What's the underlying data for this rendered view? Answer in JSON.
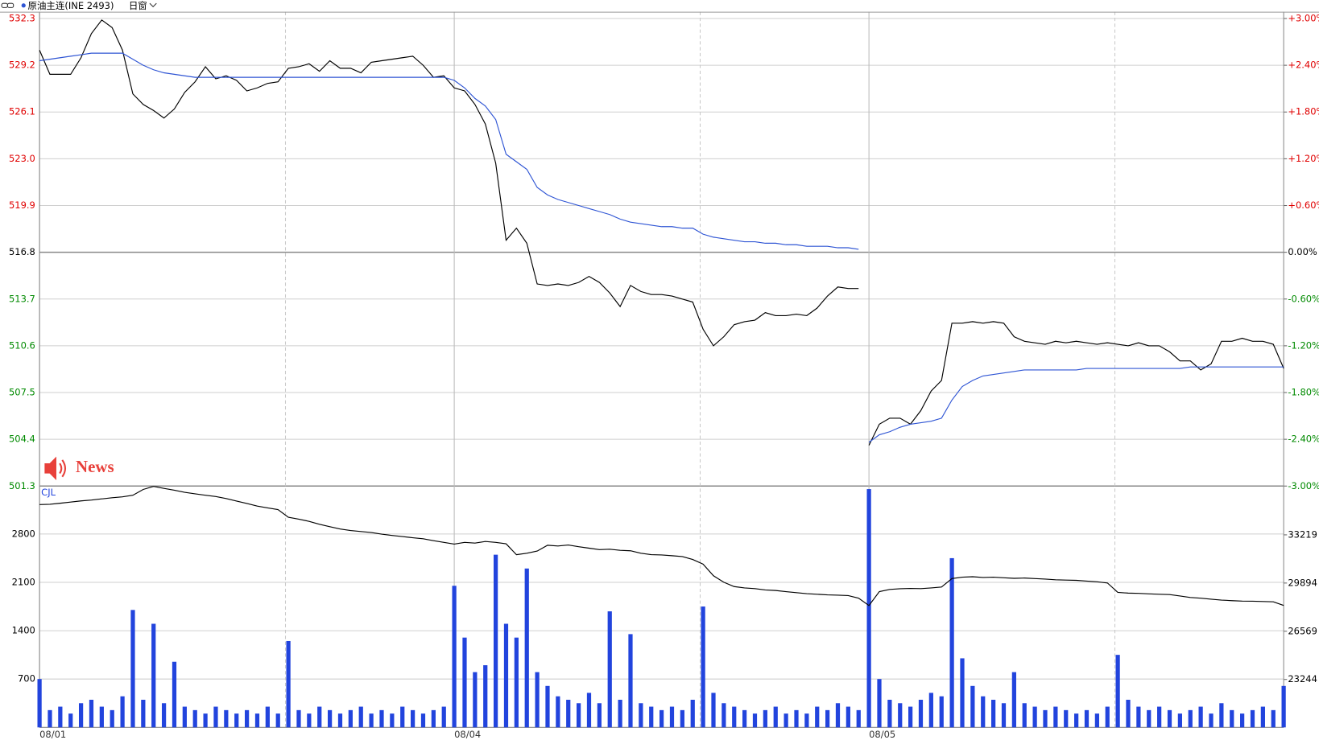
{
  "chart_data": [
    {
      "type": "line",
      "title": "原油主连(INE 2493)",
      "period": "日窗",
      "annotation": "News",
      "x": [
        0,
        0.025,
        0.05,
        0.075,
        0.1,
        0.125,
        0.15,
        0.175,
        0.2,
        0.225,
        0.25,
        0.275,
        0.3,
        0.325,
        0.35,
        0.375,
        0.4,
        0.425,
        0.45,
        0.475,
        0.5,
        0.525,
        0.55,
        0.575,
        0.6,
        0.625,
        0.65,
        0.675,
        0.7,
        0.725,
        0.75,
        0.775,
        0.8,
        0.825,
        0.85,
        0.875,
        0.9,
        0.925,
        0.95,
        0.975,
        1,
        1.025,
        1.05,
        1.075,
        1.1,
        1.125,
        1.15,
        1.175,
        1.2,
        1.225,
        1.25,
        1.275,
        1.3,
        1.325,
        1.35,
        1.375,
        1.4,
        1.425,
        1.45,
        1.475,
        1.5,
        1.525,
        1.55,
        1.575,
        1.6,
        1.625,
        1.65,
        1.675,
        1.7,
        1.725,
        1.75,
        1.775,
        1.8,
        1.825,
        1.85,
        1.875,
        1.9,
        1.925,
        1.95,
        1.975,
        1.995,
        2,
        2.025,
        2.05,
        2.075,
        2.1,
        2.125,
        2.15,
        2.175,
        2.2,
        2.225,
        2.25,
        2.275,
        2.3,
        2.325,
        2.35,
        2.375,
        2.4,
        2.425,
        2.45,
        2.475,
        2.5,
        2.525,
        2.55,
        2.575,
        2.6,
        2.625,
        2.65,
        2.675,
        2.7,
        2.725,
        2.75,
        2.775,
        2.8,
        2.825,
        2.85,
        2.875,
        2.9,
        2.925,
        2.95,
        2.975,
        3
      ],
      "xlim": [
        0,
        3
      ],
      "series": [
        {
          "color": "#000000",
          "values": [
            530.2,
            528.6,
            528.6,
            528.6,
            529.7,
            531.3,
            532.2,
            531.7,
            530.2,
            527.3,
            526.6,
            526.2,
            525.7,
            526.3,
            527.4,
            528.1,
            529.1,
            528.3,
            528.5,
            528.2,
            527.5,
            527.7,
            528.0,
            528.1,
            529.0,
            529.1,
            529.3,
            528.8,
            529.5,
            529.0,
            529.0,
            528.7,
            529.4,
            529.5,
            529.6,
            529.7,
            529.8,
            529.2,
            528.4,
            528.5,
            527.7,
            527.5,
            526.6,
            525.3,
            522.7,
            517.6,
            518.4,
            517.4,
            514.7,
            514.6,
            514.7,
            514.6,
            514.8,
            515.2,
            514.8,
            514.1,
            513.2,
            514.6,
            514.2,
            514.0,
            514.0,
            513.9,
            513.7,
            513.5,
            511.7,
            510.6,
            511.2,
            512.0,
            512.2,
            512.3,
            512.8,
            512.6,
            512.6,
            512.7,
            512.6,
            513.1,
            513.9,
            514.5,
            514.4,
            514.4,
            null,
            504.0,
            505.4,
            505.8,
            505.8,
            505.4,
            506.3,
            507.6,
            508.3,
            512.1,
            512.1,
            512.2,
            512.1,
            512.2,
            512.1,
            511.2,
            510.9,
            510.8,
            510.7,
            510.9,
            510.8,
            510.9,
            510.8,
            510.7,
            510.8,
            510.7,
            510.6,
            510.8,
            510.6,
            510.6,
            510.2,
            509.6,
            509.6,
            509.0,
            509.4,
            510.9,
            510.9,
            511.1,
            510.9,
            510.9,
            510.7,
            509.1
          ]
        },
        {
          "color": "#2f55d4",
          "values": [
            529.5,
            529.6,
            529.7,
            529.8,
            529.9,
            530.0,
            530.0,
            530.0,
            530.0,
            529.6,
            529.2,
            528.9,
            528.7,
            528.6,
            528.5,
            528.4,
            528.4,
            528.4,
            528.4,
            528.4,
            528.4,
            528.4,
            528.4,
            528.4,
            528.4,
            528.4,
            528.4,
            528.4,
            528.4,
            528.4,
            528.4,
            528.4,
            528.4,
            528.4,
            528.4,
            528.4,
            528.4,
            528.4,
            528.4,
            528.4,
            528.2,
            527.7,
            527.0,
            526.5,
            525.6,
            523.3,
            522.8,
            522.3,
            521.1,
            520.6,
            520.3,
            520.1,
            519.9,
            519.7,
            519.5,
            519.3,
            519.0,
            518.8,
            518.7,
            518.6,
            518.5,
            518.5,
            518.4,
            518.4,
            518.0,
            517.8,
            517.7,
            517.6,
            517.5,
            517.5,
            517.4,
            517.4,
            517.3,
            517.3,
            517.2,
            517.2,
            517.2,
            517.1,
            517.1,
            517.0,
            null,
            504.2,
            504.7,
            504.9,
            505.2,
            505.4,
            505.5,
            505.6,
            505.8,
            507.0,
            507.9,
            508.3,
            508.6,
            508.7,
            508.8,
            508.9,
            509.0,
            509.0,
            509.0,
            509.0,
            509.0,
            509.0,
            509.1,
            509.1,
            509.1,
            509.1,
            509.1,
            509.1,
            509.1,
            509.1,
            509.1,
            509.1,
            509.2,
            509.2,
            509.2,
            509.2,
            509.2,
            509.2,
            509.2,
            509.2,
            509.2,
            509.2
          ]
        }
      ],
      "ylim": [
        501.3,
        532.3
      ],
      "yticks": [
        532.3,
        529.2,
        526.1,
        {
          "value": 523,
          "label": "523.0"
        },
        519.9,
        516.8,
        513.7,
        510.6,
        507.5,
        504.4,
        501.3
      ],
      "y2lim": [
        -3,
        3
      ],
      "y2ticks": [
        {
          "value": 3,
          "label": "+3.00%"
        },
        {
          "value": 2.4,
          "label": "+2.40%"
        },
        {
          "value": 1.8,
          "label": "+1.80%"
        },
        {
          "value": 1.2,
          "label": "+1.20%"
        },
        {
          "value": 0.6,
          "label": "+0.60%"
        },
        {
          "value": 0,
          "label": "0.00%"
        },
        {
          "value": -0.6,
          "label": "-0.60%"
        },
        {
          "value": -1.2,
          "label": "-1.20%"
        },
        {
          "value": -1.8,
          "label": "-1.80%"
        },
        {
          "value": -2.4,
          "label": "-2.40%"
        },
        {
          "value": -3,
          "label": "-3.00%"
        }
      ],
      "grid": true
    },
    {
      "type": "bar",
      "x": [
        0,
        0.025,
        0.05,
        0.075,
        0.1,
        0.125,
        0.15,
        0.175,
        0.2,
        0.225,
        0.25,
        0.275,
        0.3,
        0.325,
        0.35,
        0.375,
        0.4,
        0.425,
        0.45,
        0.475,
        0.5,
        0.525,
        0.55,
        0.575,
        0.6,
        0.625,
        0.65,
        0.675,
        0.7,
        0.725,
        0.75,
        0.775,
        0.8,
        0.825,
        0.85,
        0.875,
        0.9,
        0.925,
        0.95,
        0.975,
        1,
        1.025,
        1.05,
        1.075,
        1.1,
        1.125,
        1.15,
        1.175,
        1.2,
        1.225,
        1.25,
        1.275,
        1.3,
        1.325,
        1.35,
        1.375,
        1.4,
        1.425,
        1.45,
        1.475,
        1.5,
        1.525,
        1.55,
        1.575,
        1.6,
        1.625,
        1.65,
        1.675,
        1.7,
        1.725,
        1.75,
        1.775,
        1.8,
        1.825,
        1.85,
        1.875,
        1.9,
        1.925,
        1.95,
        1.975,
        2,
        2.025,
        2.05,
        2.075,
        2.1,
        2.125,
        2.15,
        2.175,
        2.2,
        2.225,
        2.25,
        2.275,
        2.3,
        2.325,
        2.35,
        2.375,
        2.4,
        2.425,
        2.45,
        2.475,
        2.5,
        2.525,
        2.55,
        2.575,
        2.6,
        2.625,
        2.65,
        2.675,
        2.7,
        2.725,
        2.75,
        2.775,
        2.8,
        2.825,
        2.85,
        2.875,
        2.9,
        2.925,
        2.95,
        2.975,
        3
      ],
      "xlim": [
        0,
        3
      ],
      "xticks": [
        {
          "value": 0,
          "label": "08/01"
        },
        {
          "value": 0.593,
          "label": null
        },
        {
          "value": 1,
          "label": "08/04"
        },
        {
          "value": 1.593,
          "label": null
        },
        {
          "value": 2,
          "label": "08/05"
        },
        {
          "value": 2.593,
          "label": null
        }
      ],
      "series": [
        {
          "name": "CJL",
          "type": "bar",
          "color": "#2244dd",
          "values": [
            700,
            250,
            300,
            200,
            350,
            400,
            300,
            250,
            450,
            1700,
            400,
            1500,
            350,
            950,
            300,
            250,
            200,
            300,
            250,
            200,
            250,
            200,
            300,
            200,
            1250,
            250,
            200,
            300,
            250,
            200,
            250,
            300,
            200,
            250,
            200,
            300,
            250,
            200,
            250,
            300,
            2050,
            1300,
            800,
            900,
            2500,
            1500,
            1300,
            2300,
            800,
            600,
            450,
            400,
            350,
            500,
            350,
            1680,
            400,
            1350,
            350,
            300,
            250,
            300,
            250,
            400,
            1750,
            500,
            350,
            300,
            250,
            200,
            250,
            300,
            200,
            250,
            200,
            300,
            250,
            350,
            300,
            250,
            3450,
            700,
            400,
            350,
            300,
            400,
            500,
            450,
            2450,
            1000,
            600,
            450,
            400,
            350,
            800,
            350,
            300,
            250,
            300,
            250,
            200,
            250,
            200,
            300,
            1050,
            400,
            300,
            250,
            300,
            250,
            200,
            250,
            300,
            200,
            350,
            250,
            200,
            250,
            300,
            250,
            600
          ]
        },
        {
          "type": "line",
          "axis": "y2",
          "color": "#000000",
          "values": [
            35308,
            35330,
            35400,
            35480,
            35560,
            35620,
            35700,
            35780,
            35840,
            35950,
            36350,
            36560,
            36420,
            36300,
            36150,
            36050,
            35950,
            35860,
            35720,
            35550,
            35380,
            35200,
            35080,
            34960,
            34430,
            34300,
            34150,
            33950,
            33780,
            33620,
            33520,
            33450,
            33380,
            33270,
            33180,
            33100,
            33020,
            32950,
            32820,
            32700,
            32580,
            32700,
            32650,
            32760,
            32700,
            32600,
            31850,
            31950,
            32100,
            32500,
            32450,
            32520,
            32400,
            32300,
            32200,
            32230,
            32150,
            32120,
            31950,
            31850,
            31830,
            31780,
            31720,
            31520,
            31200,
            30400,
            29950,
            29650,
            29560,
            29510,
            29420,
            29380,
            29300,
            29230,
            29160,
            29120,
            29080,
            29060,
            29030,
            28850,
            28344,
            29300,
            29450,
            29500,
            29520,
            29510,
            29560,
            29620,
            30200,
            30300,
            30330,
            30280,
            30300,
            30260,
            30220,
            30240,
            30200,
            30170,
            30120,
            30100,
            30080,
            30030,
            29980,
            29900,
            29250,
            29200,
            29180,
            29150,
            29120,
            29100,
            29000,
            28900,
            28850,
            28780,
            28720,
            28680,
            28650,
            28640,
            28620,
            28600,
            28350
          ]
        }
      ],
      "ylim": [
        0,
        3494
      ],
      "yticks": [
        700,
        1400,
        2100,
        2800
      ],
      "y2lim": [
        19937,
        36585
      ],
      "y2ticks": [
        23244,
        26569,
        29894,
        33219
      ],
      "grid": true
    }
  ]
}
